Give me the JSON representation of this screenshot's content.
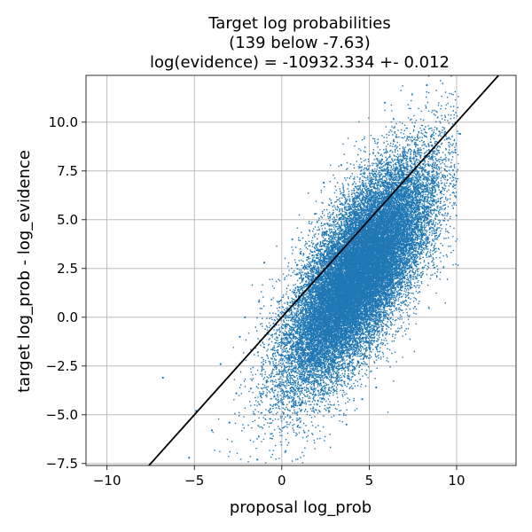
{
  "chart_data": {
    "type": "scatter",
    "title": [
      "Target log probabilities",
      "(139 below -7.63)",
      "log(evidence) = -10932.334 +- 0.012"
    ],
    "xlabel": "proposal log_prob",
    "ylabel": "target log_prob - log_evidence",
    "xlim": [
      -11.2,
      13.4
    ],
    "ylim": [
      -7.6,
      12.4
    ],
    "xticks": [
      -10,
      -5,
      0,
      5,
      10
    ],
    "xtick_labels": [
      "−10",
      "−5",
      "0",
      "5",
      "10"
    ],
    "yticks": [
      -7.5,
      -5.0,
      -2.5,
      0.0,
      2.5,
      5.0,
      7.5,
      10.0
    ],
    "ytick_labels": [
      "−7.5",
      "−5.0",
      "−2.5",
      "0.0",
      "2.5",
      "5.0",
      "7.5",
      "10.0"
    ],
    "grid": true,
    "point_color": "#1f77b4",
    "line_color": "#000000",
    "reference_line": {
      "x": [
        -7.63,
        12.4
      ],
      "y": [
        -7.63,
        12.4
      ]
    },
    "cloud_summary": {
      "center_x": 4.4,
      "center_y": 2.3,
      "sd_along": 3.3,
      "sd_across": 1.25,
      "n_points_approx": 30000
    },
    "outliers": [
      {
        "x": -6.8,
        "y": -3.1
      },
      {
        "x": -4.9,
        "y": -4.8
      },
      {
        "x": -5.3,
        "y": -7.2
      },
      {
        "x": -3.5,
        "y": -2.4
      },
      {
        "x": -2.4,
        "y": -1.0
      },
      {
        "x": -2.1,
        "y": 0.0
      },
      {
        "x": -1.0,
        "y": 2.8
      },
      {
        "x": -1.3,
        "y": 0.8
      },
      {
        "x": -3.0,
        "y": -5.4
      },
      {
        "x": -4.0,
        "y": -5.8
      },
      {
        "x": -2.6,
        "y": -3.9
      },
      {
        "x": 0.6,
        "y": 4.0
      },
      {
        "x": 1.9,
        "y": 5.3
      },
      {
        "x": 2.4,
        "y": 6.9
      },
      {
        "x": 3.4,
        "y": 7.8
      },
      {
        "x": 5.9,
        "y": 11.0
      },
      {
        "x": 8.3,
        "y": 11.9
      },
      {
        "x": 10.2,
        "y": 9.4
      },
      {
        "x": 8.3,
        "y": 5.1
      },
      {
        "x": 9.8,
        "y": 6.7
      },
      {
        "x": 5.4,
        "y": -3.6
      },
      {
        "x": 4.6,
        "y": -4.2
      },
      {
        "x": 0.2,
        "y": -6.9
      },
      {
        "x": -1.4,
        "y": -7.3
      },
      {
        "x": 1.3,
        "y": -5.9
      },
      {
        "x": 3.7,
        "y": -5.5
      }
    ]
  }
}
